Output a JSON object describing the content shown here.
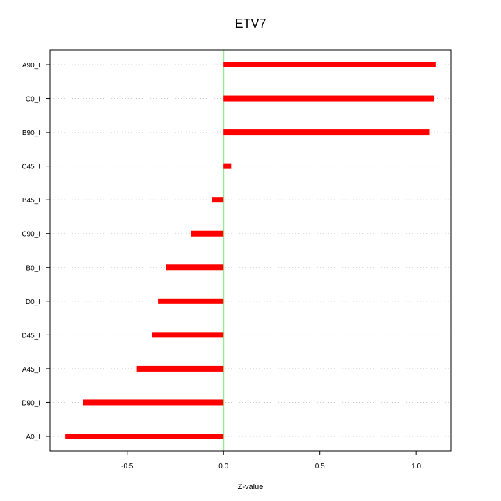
{
  "chart_data": {
    "type": "bar",
    "orientation": "horizontal",
    "title": "ETV7",
    "xlabel": "Z-value",
    "ylabel": "",
    "categories": [
      "A90_I",
      "C0_I",
      "B90_I",
      "C45_I",
      "B45_I",
      "C90_I",
      "B0_I",
      "D0_I",
      "D45_I",
      "A45_I",
      "D90_I",
      "A0_I"
    ],
    "values": [
      1.1,
      1.09,
      1.07,
      0.04,
      -0.06,
      -0.17,
      -0.3,
      -0.34,
      -0.37,
      -0.45,
      -0.73,
      -0.82
    ],
    "xlim": [
      -0.9,
      1.18
    ],
    "x_ticks": [
      -0.5,
      0.0,
      0.5,
      1.0
    ],
    "x_tick_labels": [
      "-0.5",
      "0.0",
      "0.5",
      "1.0"
    ],
    "grid": "horizontal-dotted",
    "reference_line": 0,
    "colors": {
      "bar": "#ff0000",
      "reference_line": "#90ee90",
      "grid": "#cccccc",
      "axis": "#000000"
    }
  }
}
